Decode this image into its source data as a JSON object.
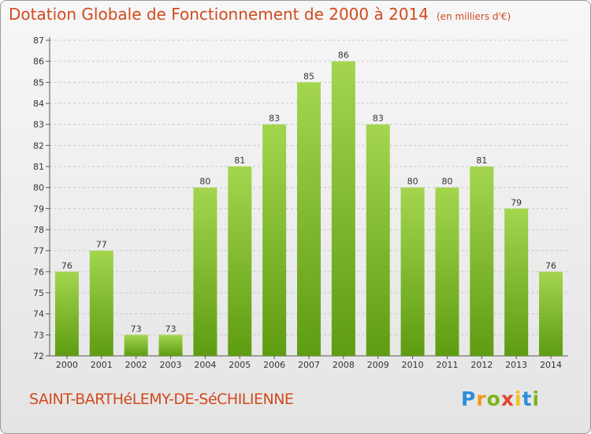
{
  "title": "Dotation Globale de Fonctionnement de 2000 à 2014",
  "subtitle": "(en milliers d'€)",
  "commune": "SAINT-BARTHéLEMY-DE-SéCHILIENNE",
  "brand": {
    "letters": [
      "P",
      "r",
      "o",
      "x",
      "i",
      "t",
      "i"
    ]
  },
  "colors": {
    "title": "#d24a1e",
    "bar_top": "#9fd24a",
    "bar_bottom": "#5e9c12",
    "grid": "#c8c8c8"
  },
  "chart_data": {
    "type": "bar",
    "title": "Dotation Globale de Fonctionnement de 2000 à 2014",
    "subtitle": "(en milliers d'€)",
    "categories": [
      "2000",
      "2001",
      "2002",
      "2003",
      "2004",
      "2005",
      "2006",
      "2007",
      "2008",
      "2009",
      "2010",
      "2011",
      "2012",
      "2013",
      "2014"
    ],
    "values": [
      76,
      77,
      73,
      73,
      80,
      81,
      83,
      85,
      86,
      83,
      80,
      80,
      81,
      79,
      76
    ],
    "yticks": [
      72,
      73,
      74,
      75,
      76,
      77,
      78,
      79,
      80,
      81,
      82,
      83,
      84,
      85,
      86,
      87
    ],
    "ylim": [
      72,
      87
    ],
    "xlabel": "",
    "ylabel": "",
    "grid": true
  }
}
